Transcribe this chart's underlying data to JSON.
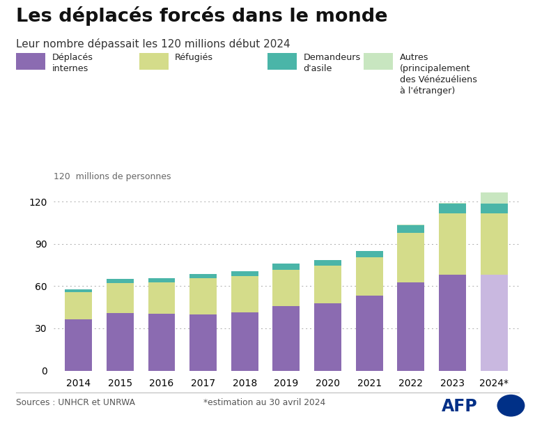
{
  "years": [
    "2014",
    "2015",
    "2016",
    "2017",
    "2018",
    "2019",
    "2020",
    "2021",
    "2022",
    "2023",
    "2024*"
  ],
  "deplaces_internes": [
    36.4,
    40.8,
    40.3,
    40.0,
    41.4,
    45.7,
    48.0,
    53.2,
    62.5,
    68.3,
    68.3
  ],
  "refugies": [
    19.5,
    21.3,
    22.5,
    25.4,
    25.9,
    26.0,
    26.4,
    27.1,
    35.3,
    43.4,
    43.4
  ],
  "demandeurs_asile": [
    1.8,
    3.2,
    2.8,
    3.1,
    3.2,
    4.1,
    4.1,
    4.6,
    5.4,
    6.9,
    6.9
  ],
  "autres": [
    0.0,
    0.0,
    0.0,
    0.0,
    0.0,
    0.0,
    0.0,
    0.0,
    0.5,
    0.6,
    7.7
  ],
  "colors": {
    "deplaces_internes": "#8b6bb1",
    "deplaces_internes_2024": "#c9b8e0",
    "refugies": "#d4dc8a",
    "demandeurs_asile": "#4ab5a8",
    "autres": "#c8e6c0"
  },
  "title": "Les déplacés forcés dans le monde",
  "subtitle": "Leur nombre dépassait les 120 millions début 2024",
  "ylabel": "120  millions de personnes",
  "yticks": [
    0,
    30,
    60,
    90,
    120
  ],
  "legend_labels": [
    "Déplacés\ninternes",
    "Réfugiés",
    "Demandeurs\nd'asile",
    "Autres\n(principalement\ndes Vénézuéliens\nà l'étranger)"
  ],
  "source_left": "Sources : UNHCR et UNRWA",
  "source_right": "*estimation au 30 avril 2024",
  "background_color": "#ffffff",
  "bar_width": 0.65
}
